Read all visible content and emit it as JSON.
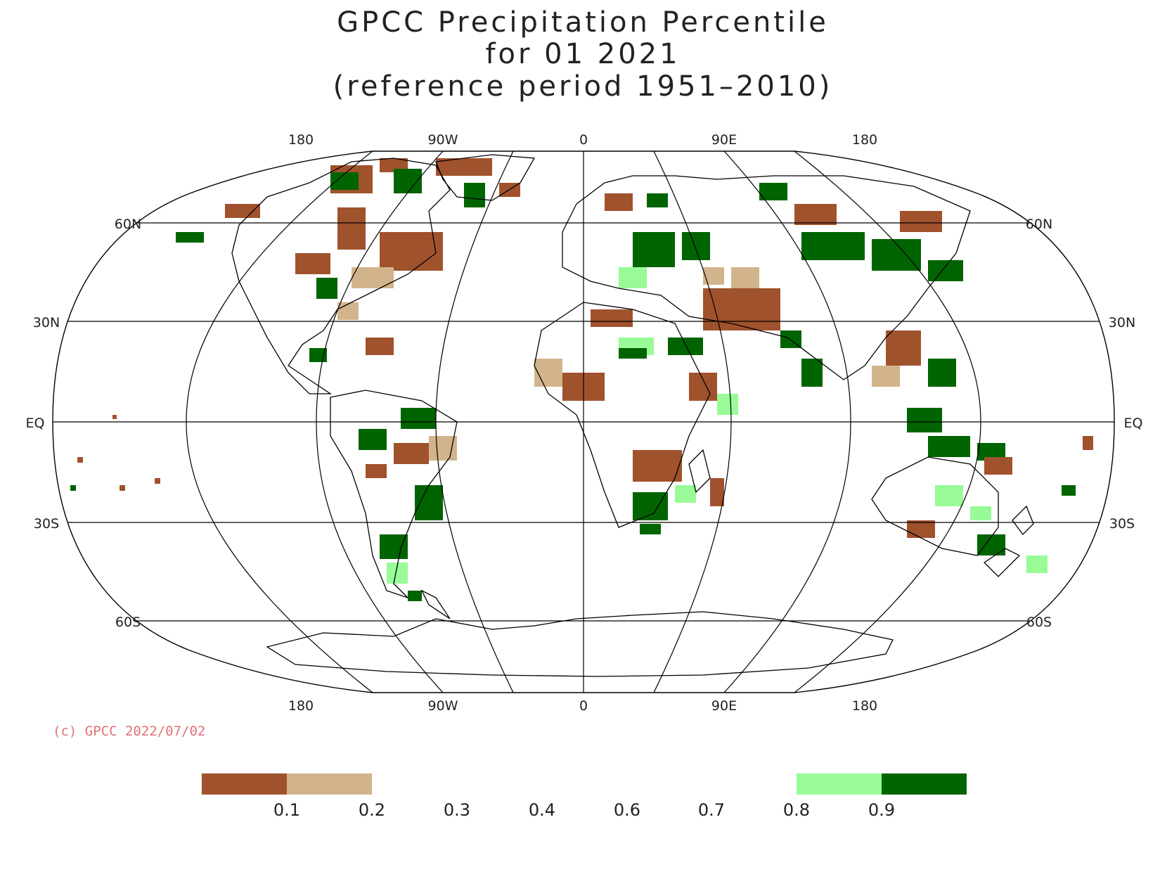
{
  "title": {
    "line1": "GPCC Precipitation Percentile",
    "line2": "for 01 2021",
    "line3": "(reference period 1951–2010)"
  },
  "top_lon_labels": [
    "180",
    "90W",
    "0",
    "90E",
    "180"
  ],
  "bottom_lon_labels": [
    "180",
    "90W",
    "0",
    "90E",
    "180"
  ],
  "lat_labels": {
    "left": [
      "60N",
      "30N",
      "EQ",
      "30S",
      "60S"
    ],
    "right": [
      "60N",
      "30N",
      "EQ",
      "30S",
      "60S"
    ]
  },
  "copyright": "(c) GPCC 2022/07/02",
  "legend": {
    "colors": [
      "#a0522d",
      "#d2b48c",
      "#98fb98",
      "#006400"
    ],
    "labels": [
      "0.1",
      "0.2",
      "0.3",
      "0.4",
      "0.6",
      "0.7",
      "0.8",
      "0.9"
    ]
  }
}
